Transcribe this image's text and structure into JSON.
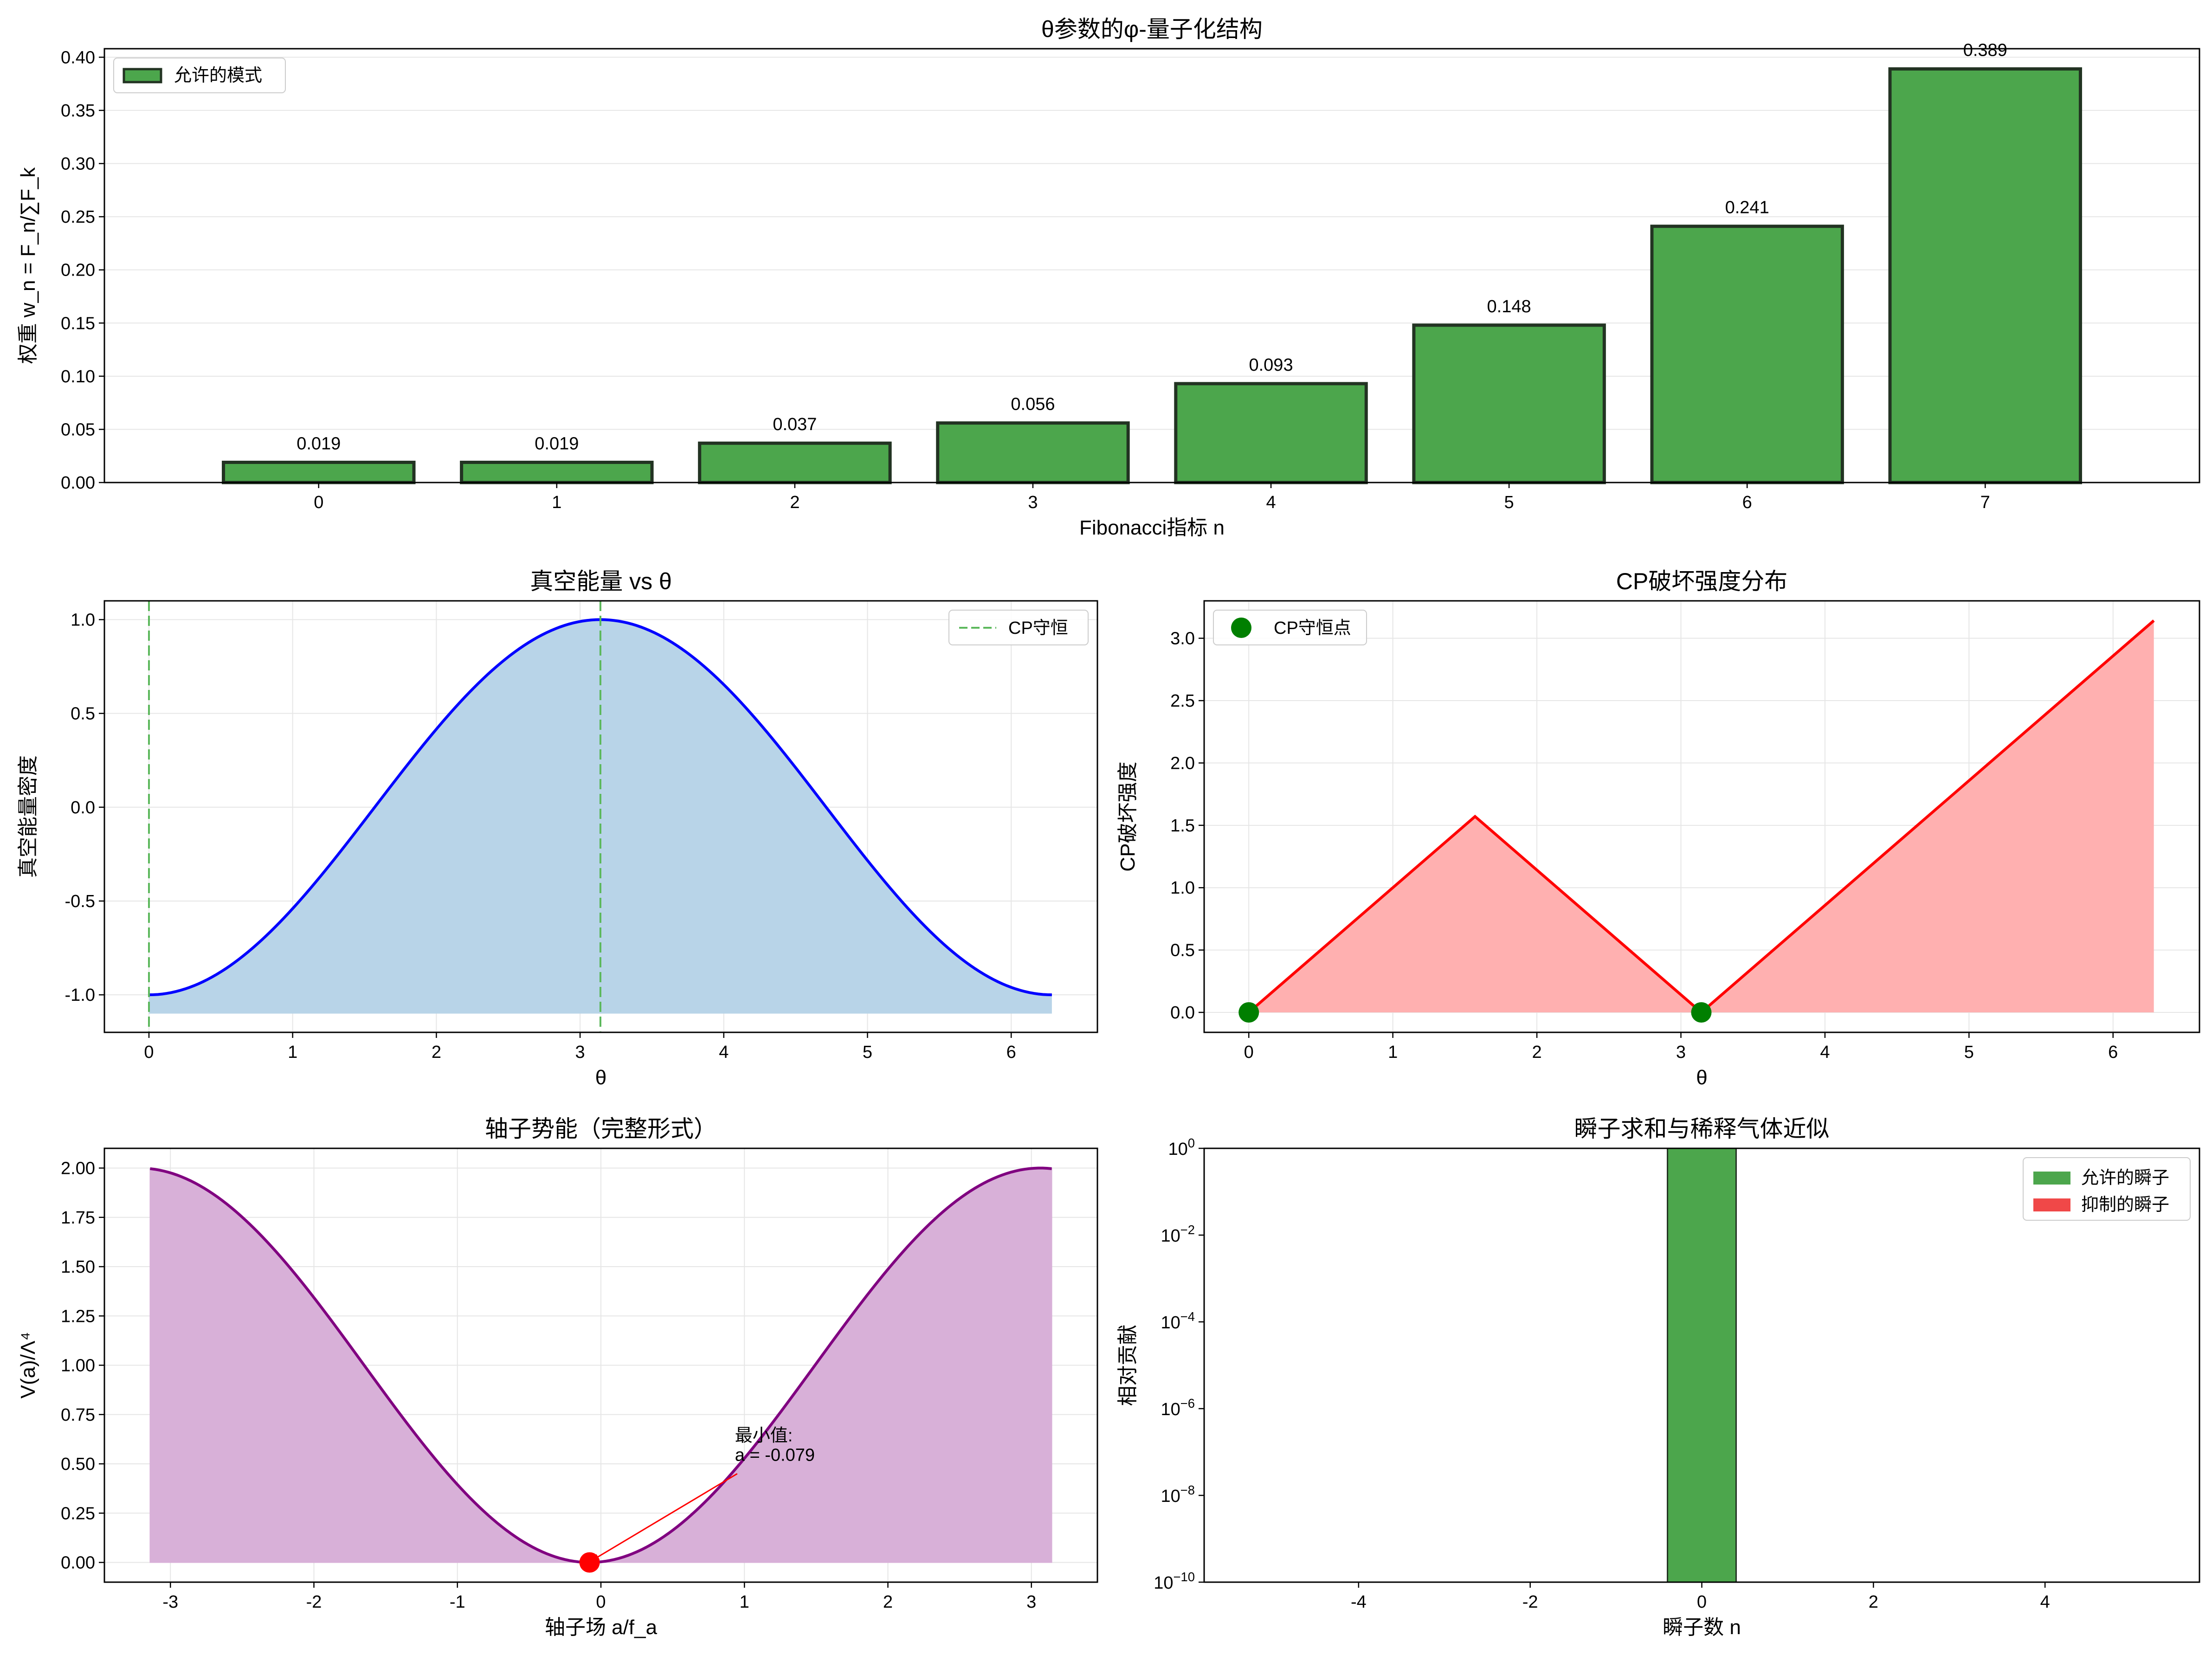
{
  "chart_data": [
    {
      "id": "fib",
      "type": "bar",
      "title": "θ参数的φ-量子化结构",
      "xlabel": "Fibonacci指标 n",
      "ylabel": "权重 w_n = F_n/∑F_k",
      "categories": [
        "0",
        "1",
        "2",
        "3",
        "4",
        "5",
        "6",
        "7"
      ],
      "values": [
        0.019,
        0.019,
        0.037,
        0.056,
        0.093,
        0.148,
        0.241,
        0.389
      ],
      "value_labels": [
        "0.019",
        "0.019",
        "0.037",
        "0.056",
        "0.093",
        "0.148",
        "0.241",
        "0.389"
      ],
      "xlim": [
        -0.9,
        7.9
      ],
      "ylim": [
        0,
        0.408
      ],
      "yticks": [
        0,
        0.05,
        0.1,
        0.15,
        0.2,
        0.25,
        0.3,
        0.35,
        0.4
      ],
      "ytick_labels": [
        "0.00",
        "0.05",
        "0.10",
        "0.15",
        "0.20",
        "0.25",
        "0.30",
        "0.35",
        "0.40"
      ],
      "legend": {
        "label": "允许的模式",
        "position": "upper-left"
      },
      "colors": {
        "bar": "#4ca64c",
        "edge": "#223322"
      },
      "grid": "y"
    },
    {
      "id": "vac",
      "type": "line",
      "title": "真空能量 vs θ",
      "xlabel": "θ",
      "ylabel": "真空能量密度",
      "function": "-cos(θ)",
      "x_range": [
        0,
        6.2832
      ],
      "fill_to": -1.1,
      "xlim": [
        -0.31,
        6.6
      ],
      "ylim": [
        -1.2,
        1.1
      ],
      "xticks": [
        0,
        1,
        2,
        3,
        4,
        5,
        6
      ],
      "xtick_labels": [
        "0",
        "1",
        "2",
        "3",
        "4",
        "5",
        "6"
      ],
      "yticks": [
        -1,
        -0.5,
        0,
        0.5,
        1
      ],
      "ytick_labels": [
        "-1.0",
        "-0.5",
        "0.0",
        "0.5",
        "1.0"
      ],
      "vlines": [
        0,
        3.1416
      ],
      "legend": {
        "label": "CP守恒",
        "position": "upper-right"
      },
      "colors": {
        "line": "#0000ff",
        "fill": "#b8d4e8",
        "vline": "#5cb85c"
      },
      "grid": "both"
    },
    {
      "id": "cp",
      "type": "line",
      "title": "CP破坏强度分布",
      "xlabel": "θ",
      "ylabel": "CP破坏强度",
      "points": [
        [
          0,
          0
        ],
        [
          1.5708,
          1.5708
        ],
        [
          3.1416,
          0
        ],
        [
          6.2832,
          3.1416
        ]
      ],
      "markers": [
        [
          0,
          0
        ],
        [
          3.1416,
          0
        ]
      ],
      "xlim": [
        -0.31,
        6.6
      ],
      "ylim": [
        -0.16,
        3.3
      ],
      "xticks": [
        0,
        1,
        2,
        3,
        4,
        5,
        6
      ],
      "xtick_labels": [
        "0",
        "1",
        "2",
        "3",
        "4",
        "5",
        "6"
      ],
      "yticks": [
        0,
        0.5,
        1,
        1.5,
        2,
        2.5,
        3
      ],
      "ytick_labels": [
        "0.0",
        "0.5",
        "1.0",
        "1.5",
        "2.0",
        "2.5",
        "3.0"
      ],
      "legend": {
        "label": "CP守恒点",
        "position": "upper-left"
      },
      "colors": {
        "line": "#ff0000",
        "fill": "#ffb0b0",
        "marker": "#007f00"
      },
      "grid": "both"
    },
    {
      "id": "axion",
      "type": "area",
      "title": "轴子势能（完整形式）",
      "xlabel": "轴子场 a/f_a",
      "ylabel": "V(a)/Λ⁴",
      "function": "1 - cos(x + 0.079)",
      "x_range": [
        -3.1416,
        3.1416
      ],
      "xlim": [
        -3.46,
        3.46
      ],
      "ylim": [
        -0.1,
        2.1
      ],
      "xticks": [
        -3,
        -2,
        -1,
        0,
        1,
        2,
        3
      ],
      "xtick_labels": [
        "-3",
        "-2",
        "-1",
        "0",
        "1",
        "2",
        "3"
      ],
      "yticks": [
        0,
        0.25,
        0.5,
        0.75,
        1,
        1.25,
        1.5,
        1.75,
        2
      ],
      "ytick_labels": [
        "0.00",
        "0.25",
        "0.50",
        "0.75",
        "1.00",
        "1.25",
        "1.50",
        "1.75",
        "2.00"
      ],
      "minimum": {
        "x": -0.079,
        "y": 0
      },
      "annotation": {
        "line1": "最小值:",
        "line2": "a = -0.079",
        "x": 0.95,
        "y": 0.45
      },
      "colors": {
        "line": "#800080",
        "fill": "#d8b0d8",
        "marker": "#ff0000",
        "arrow": "#ff0000"
      },
      "grid": "both"
    },
    {
      "id": "inst",
      "type": "bar",
      "title": "瞬子求和与稀释气体近似",
      "xlabel": "瞬子数 n",
      "ylabel": "相对贡献",
      "yscale": "log",
      "bars": [
        {
          "x": 0,
          "value": 1,
          "width": 0.8
        }
      ],
      "xlim": [
        -5.8,
        5.8
      ],
      "ylim": [
        1e-10,
        1
      ],
      "xticks": [
        -4,
        -2,
        0,
        2,
        4
      ],
      "xtick_labels": [
        "-4",
        "-2",
        "0",
        "2",
        "4"
      ],
      "yticks": [
        1e-10,
        1e-08,
        1e-06,
        0.0001,
        0.01,
        1
      ],
      "ytick_labels": [
        [
          "10",
          "−10"
        ],
        [
          "10",
          "−8"
        ],
        [
          "10",
          "−6"
        ],
        [
          "10",
          "−4"
        ],
        [
          "10",
          "−2"
        ],
        [
          "10",
          "0"
        ]
      ],
      "legend": [
        {
          "label": "允许的瞬子",
          "color": "#4ca64c"
        },
        {
          "label": "抑制的瞬子",
          "color": "#f04848"
        }
      ],
      "legend_position": "upper-right",
      "colors": {
        "bar": "#4ca64c",
        "edge": "#223322"
      },
      "grid": "none"
    }
  ]
}
